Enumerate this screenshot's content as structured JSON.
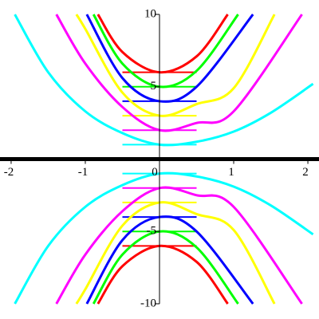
{
  "chart_data": {
    "type": "line",
    "xlim": [
      -2.15,
      2.15
    ],
    "ylim": [
      -10.5,
      10.5
    ],
    "xticks": [
      -2,
      -1,
      0,
      1,
      2
    ],
    "yticks": [
      -10,
      -5,
      5,
      10
    ],
    "series": [
      {
        "color": "#ff0000",
        "x": [
          -0.83,
          -0.5,
          0,
          0.5,
          0.92
        ],
        "values": [
          10,
          7.4,
          6,
          7.1,
          10
        ]
      },
      {
        "color": "#00ff00",
        "x": [
          -0.89,
          -0.5,
          0,
          0.5,
          1.06
        ],
        "values": [
          10,
          6.6,
          5,
          6.1,
          10
        ]
      },
      {
        "color": "#0000ff",
        "x": [
          -0.98,
          -0.5,
          0,
          0.5,
          1.26
        ],
        "values": [
          10,
          5.6,
          4,
          5,
          10
        ]
      },
      {
        "color": "#ffff00",
        "x": [
          -1.12,
          -1,
          -0.5,
          0,
          0.5,
          1,
          1.55
        ],
        "values": [
          10,
          9,
          4.6,
          3,
          3.8,
          4.9,
          10
        ]
      },
      {
        "color": "#ff00ff",
        "x": [
          -1.39,
          -1,
          -0.5,
          0,
          0.5,
          1,
          1.92
        ],
        "values": [
          10,
          6.6,
          3.6,
          2,
          2.5,
          3.3,
          10
        ]
      },
      {
        "color": "#00ffff",
        "x": [
          -1.95,
          -1.5,
          -1,
          -0.5,
          0,
          0.5,
          1,
          1.5,
          2.07
        ],
        "values": [
          10,
          6,
          3.3,
          1.8,
          1,
          1.2,
          1.9,
          3.2,
          5.2
        ]
      },
      {
        "color": "#ff0000",
        "x": [
          -0.83,
          -0.5,
          0,
          0.5,
          0.92
        ],
        "values": [
          -10,
          -7.4,
          -6,
          -7.1,
          -10
        ]
      },
      {
        "color": "#00ff00",
        "x": [
          -0.89,
          -0.5,
          0,
          0.5,
          1.06
        ],
        "values": [
          -10,
          -6.6,
          -5,
          -6.1,
          -10
        ]
      },
      {
        "color": "#0000ff",
        "x": [
          -0.98,
          -0.5,
          0,
          0.5,
          1.26
        ],
        "values": [
          -10,
          -5.6,
          -4,
          -5,
          -10
        ]
      },
      {
        "color": "#ffff00",
        "x": [
          -1.12,
          -1,
          -0.5,
          0,
          0.5,
          1,
          1.55
        ],
        "values": [
          -10,
          -9,
          -4.6,
          -3,
          -3.8,
          -4.9,
          -10
        ]
      },
      {
        "color": "#ff00ff",
        "x": [
          -1.39,
          -1,
          -0.5,
          0,
          0.5,
          1,
          1.92
        ],
        "values": [
          -10,
          -6.6,
          -3.6,
          -2,
          -2.5,
          -3.3,
          -10
        ]
      },
      {
        "color": "#00ffff",
        "x": [
          -1.95,
          -1.5,
          -1,
          -0.5,
          0,
          0.5,
          1,
          1.5,
          2.07
        ],
        "values": [
          -10,
          -6,
          -3.3,
          -1.8,
          -1,
          -1.2,
          -1.9,
          -3.2,
          -5.2
        ]
      }
    ],
    "hline_x": [
      -0.5,
      0.5
    ],
    "hlines": [
      {
        "color": "#ff0000",
        "y": 6
      },
      {
        "color": "#00ff00",
        "y": 5
      },
      {
        "color": "#0000ff",
        "y": 4
      },
      {
        "color": "#ffff00",
        "y": 3
      },
      {
        "color": "#ff00ff",
        "y": 2
      },
      {
        "color": "#00ffff",
        "y": 1
      },
      {
        "color": "#00ffff",
        "y": -1
      },
      {
        "color": "#ff00ff",
        "y": -2
      },
      {
        "color": "#ffff00",
        "y": -3
      },
      {
        "color": "#0000ff",
        "y": -4
      },
      {
        "color": "#00ff00",
        "y": -5
      },
      {
        "color": "#ff0000",
        "y": -6
      }
    ]
  }
}
